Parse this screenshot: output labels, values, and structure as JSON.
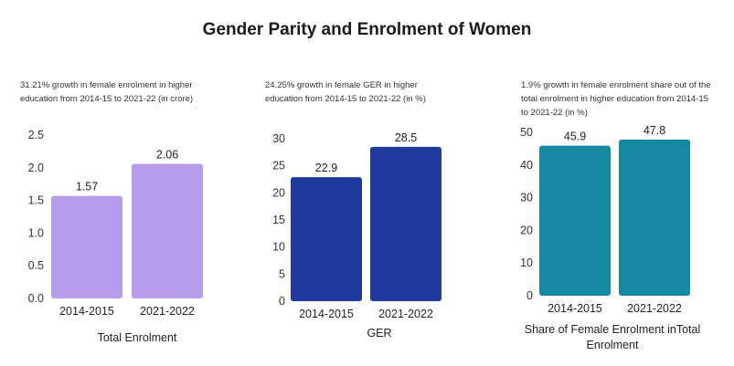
{
  "title": "Gender Parity and Enrolment of Women",
  "chart_data": [
    {
      "type": "bar",
      "subtitle": "31.21% growth in female enrolment in higher education from 2014-15 to 2021-22 (in crore)",
      "categories": [
        "2014-2015",
        "2021-2022"
      ],
      "values": [
        1.57,
        2.06
      ],
      "value_labels": [
        "1.57",
        "2.06"
      ],
      "xlabel": "Total Enrolment",
      "ylabel": "",
      "ylim": [
        0,
        2.5
      ],
      "yticks": [
        "0.0",
        "0.5",
        "1.0",
        "1.5",
        "2.0",
        "2.5"
      ],
      "color": "#b79cec",
      "grid": false
    },
    {
      "type": "bar",
      "subtitle": "24.25% growth in female GER in higher education from 2014-15 to 2021-22 (in %)",
      "categories": [
        "2014-2015",
        "2021-2022"
      ],
      "values": [
        22.9,
        28.5
      ],
      "value_labels": [
        "22.9",
        "28.5"
      ],
      "xlabel": "GER",
      "ylabel": "",
      "ylim": [
        0,
        30
      ],
      "yticks": [
        "0",
        "5",
        "10",
        "15",
        "20",
        "25",
        "30"
      ],
      "color": "#1f3a9c",
      "grid": false
    },
    {
      "type": "bar",
      "subtitle": "1.9% growth in female enrolment share out of the total enrolment in higher education from 2014-15 to 2021-22 (in %)",
      "categories": [
        "2014-2015",
        "2021-2022"
      ],
      "values": [
        45.9,
        47.8
      ],
      "value_labels": [
        "45.9",
        "47.8"
      ],
      "xlabel": "Share of Female Enrolment inTotal Enrolment",
      "ylabel": "",
      "ylim": [
        0,
        50
      ],
      "yticks": [
        "0",
        "10",
        "20",
        "30",
        "40",
        "50"
      ],
      "color": "#1589a2",
      "grid": false
    }
  ]
}
